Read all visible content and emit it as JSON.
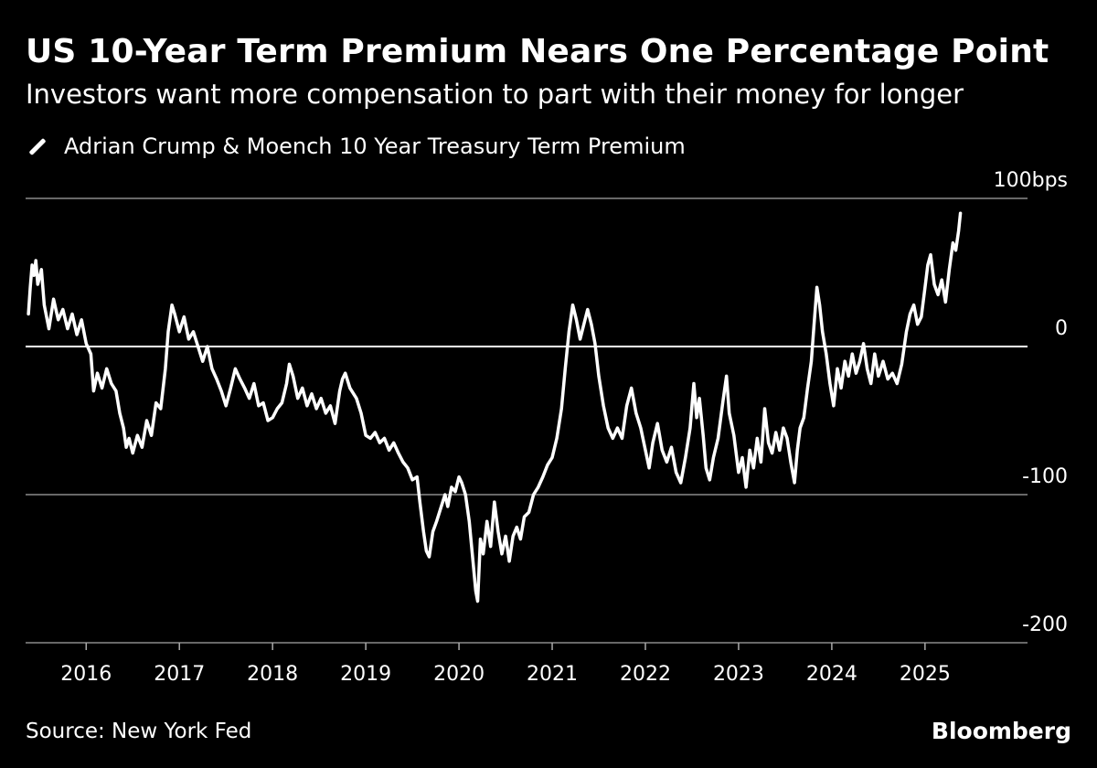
{
  "chart_data": {
    "type": "line",
    "title": "US 10-Year Term Premium Nears One Percentage Point",
    "subtitle": "Investors want more compensation to part with their money for longer",
    "legend": [
      "Adrian Crump & Moench 10 Year Treasury Term Premium"
    ],
    "y_unit": "bps",
    "ylim": [
      -200,
      100
    ],
    "y_ticks": [
      {
        "value": 100,
        "label": "100bps"
      },
      {
        "value": 0,
        "label": "0"
      },
      {
        "value": -100,
        "label": "-100"
      },
      {
        "value": -200,
        "label": "-200"
      }
    ],
    "xlim": [
      2015.35,
      2026.1
    ],
    "x_ticks": [
      {
        "value": 2016,
        "label": "2016"
      },
      {
        "value": 2017,
        "label": "2017"
      },
      {
        "value": 2018,
        "label": "2018"
      },
      {
        "value": 2019,
        "label": "2019"
      },
      {
        "value": 2020,
        "label": "2020"
      },
      {
        "value": 2021,
        "label": "2021"
      },
      {
        "value": 2022,
        "label": "2022"
      },
      {
        "value": 2023,
        "label": "2023"
      },
      {
        "value": 2024,
        "label": "2024"
      },
      {
        "value": 2025,
        "label": "2025"
      }
    ],
    "grid": true,
    "series": [
      {
        "name": "Adrian Crump & Moench 10 Year Treasury Term Premium",
        "color": "#ffffff",
        "points": [
          [
            2015.38,
            22
          ],
          [
            2015.4,
            40
          ],
          [
            2015.42,
            55
          ],
          [
            2015.44,
            48
          ],
          [
            2015.46,
            58
          ],
          [
            2015.48,
            42
          ],
          [
            2015.52,
            52
          ],
          [
            2015.55,
            28
          ],
          [
            2015.6,
            12
          ],
          [
            2015.65,
            32
          ],
          [
            2015.7,
            18
          ],
          [
            2015.75,
            25
          ],
          [
            2015.8,
            12
          ],
          [
            2015.85,
            22
          ],
          [
            2015.9,
            8
          ],
          [
            2015.95,
            18
          ],
          [
            2016.0,
            2
          ],
          [
            2016.05,
            -5
          ],
          [
            2016.08,
            -30
          ],
          [
            2016.12,
            -18
          ],
          [
            2016.17,
            -28
          ],
          [
            2016.22,
            -15
          ],
          [
            2016.27,
            -25
          ],
          [
            2016.32,
            -30
          ],
          [
            2016.36,
            -45
          ],
          [
            2016.4,
            -55
          ],
          [
            2016.43,
            -68
          ],
          [
            2016.46,
            -62
          ],
          [
            2016.5,
            -72
          ],
          [
            2016.55,
            -60
          ],
          [
            2016.6,
            -68
          ],
          [
            2016.65,
            -50
          ],
          [
            2016.7,
            -60
          ],
          [
            2016.75,
            -38
          ],
          [
            2016.8,
            -42
          ],
          [
            2016.85,
            -15
          ],
          [
            2016.88,
            10
          ],
          [
            2016.92,
            28
          ],
          [
            2016.95,
            22
          ],
          [
            2017.0,
            10
          ],
          [
            2017.05,
            20
          ],
          [
            2017.1,
            5
          ],
          [
            2017.15,
            10
          ],
          [
            2017.2,
            0
          ],
          [
            2017.25,
            -10
          ],
          [
            2017.3,
            0
          ],
          [
            2017.35,
            -15
          ],
          [
            2017.4,
            -22
          ],
          [
            2017.45,
            -30
          ],
          [
            2017.5,
            -40
          ],
          [
            2017.55,
            -28
          ],
          [
            2017.6,
            -15
          ],
          [
            2017.65,
            -22
          ],
          [
            2017.7,
            -28
          ],
          [
            2017.75,
            -35
          ],
          [
            2017.8,
            -25
          ],
          [
            2017.85,
            -40
          ],
          [
            2017.9,
            -38
          ],
          [
            2017.95,
            -50
          ],
          [
            2018.0,
            -48
          ],
          [
            2018.05,
            -42
          ],
          [
            2018.1,
            -38
          ],
          [
            2018.15,
            -25
          ],
          [
            2018.18,
            -12
          ],
          [
            2018.22,
            -20
          ],
          [
            2018.27,
            -35
          ],
          [
            2018.32,
            -28
          ],
          [
            2018.37,
            -40
          ],
          [
            2018.42,
            -32
          ],
          [
            2018.47,
            -42
          ],
          [
            2018.52,
            -35
          ],
          [
            2018.57,
            -45
          ],
          [
            2018.62,
            -40
          ],
          [
            2018.67,
            -52
          ],
          [
            2018.72,
            -30
          ],
          [
            2018.75,
            -22
          ],
          [
            2018.78,
            -18
          ],
          [
            2018.83,
            -28
          ],
          [
            2018.9,
            -35
          ],
          [
            2018.95,
            -45
          ],
          [
            2019.0,
            -60
          ],
          [
            2019.05,
            -62
          ],
          [
            2019.1,
            -58
          ],
          [
            2019.15,
            -65
          ],
          [
            2019.2,
            -62
          ],
          [
            2019.25,
            -70
          ],
          [
            2019.3,
            -65
          ],
          [
            2019.35,
            -72
          ],
          [
            2019.4,
            -78
          ],
          [
            2019.45,
            -82
          ],
          [
            2019.5,
            -90
          ],
          [
            2019.55,
            -88
          ],
          [
            2019.58,
            -105
          ],
          [
            2019.62,
            -125
          ],
          [
            2019.65,
            -138
          ],
          [
            2019.68,
            -142
          ],
          [
            2019.72,
            -125
          ],
          [
            2019.76,
            -118
          ],
          [
            2019.8,
            -110
          ],
          [
            2019.85,
            -100
          ],
          [
            2019.88,
            -108
          ],
          [
            2019.92,
            -95
          ],
          [
            2019.96,
            -98
          ],
          [
            2020.0,
            -88
          ],
          [
            2020.03,
            -92
          ],
          [
            2020.07,
            -100
          ],
          [
            2020.11,
            -118
          ],
          [
            2020.15,
            -145
          ],
          [
            2020.18,
            -165
          ],
          [
            2020.2,
            -172
          ],
          [
            2020.23,
            -130
          ],
          [
            2020.26,
            -140
          ],
          [
            2020.3,
            -118
          ],
          [
            2020.34,
            -135
          ],
          [
            2020.38,
            -105
          ],
          [
            2020.42,
            -125
          ],
          [
            2020.46,
            -140
          ],
          [
            2020.5,
            -128
          ],
          [
            2020.54,
            -145
          ],
          [
            2020.58,
            -128
          ],
          [
            2020.62,
            -122
          ],
          [
            2020.66,
            -130
          ],
          [
            2020.7,
            -115
          ],
          [
            2020.75,
            -112
          ],
          [
            2020.8,
            -100
          ],
          [
            2020.85,
            -95
          ],
          [
            2020.9,
            -88
          ],
          [
            2020.95,
            -80
          ],
          [
            2021.0,
            -75
          ],
          [
            2021.05,
            -62
          ],
          [
            2021.1,
            -42
          ],
          [
            2021.14,
            -15
          ],
          [
            2021.18,
            10
          ],
          [
            2021.22,
            28
          ],
          [
            2021.26,
            18
          ],
          [
            2021.3,
            5
          ],
          [
            2021.34,
            15
          ],
          [
            2021.38,
            25
          ],
          [
            2021.42,
            15
          ],
          [
            2021.46,
            2
          ],
          [
            2021.5,
            -20
          ],
          [
            2021.55,
            -40
          ],
          [
            2021.6,
            -55
          ],
          [
            2021.65,
            -62
          ],
          [
            2021.7,
            -55
          ],
          [
            2021.75,
            -62
          ],
          [
            2021.8,
            -40
          ],
          [
            2021.85,
            -28
          ],
          [
            2021.9,
            -45
          ],
          [
            2021.95,
            -55
          ],
          [
            2022.0,
            -70
          ],
          [
            2022.04,
            -82
          ],
          [
            2022.08,
            -65
          ],
          [
            2022.13,
            -52
          ],
          [
            2022.18,
            -70
          ],
          [
            2022.23,
            -78
          ],
          [
            2022.28,
            -68
          ],
          [
            2022.33,
            -85
          ],
          [
            2022.38,
            -92
          ],
          [
            2022.43,
            -75
          ],
          [
            2022.48,
            -55
          ],
          [
            2022.52,
            -25
          ],
          [
            2022.55,
            -48
          ],
          [
            2022.58,
            -35
          ],
          [
            2022.62,
            -60
          ],
          [
            2022.65,
            -82
          ],
          [
            2022.69,
            -90
          ],
          [
            2022.73,
            -75
          ],
          [
            2022.78,
            -62
          ],
          [
            2022.83,
            -38
          ],
          [
            2022.87,
            -20
          ],
          [
            2022.9,
            -45
          ],
          [
            2022.95,
            -60
          ],
          [
            2023.0,
            -85
          ],
          [
            2023.04,
            -75
          ],
          [
            2023.08,
            -95
          ],
          [
            2023.12,
            -70
          ],
          [
            2023.16,
            -82
          ],
          [
            2023.2,
            -62
          ],
          [
            2023.24,
            -78
          ],
          [
            2023.28,
            -42
          ],
          [
            2023.32,
            -65
          ],
          [
            2023.36,
            -72
          ],
          [
            2023.4,
            -58
          ],
          [
            2023.44,
            -70
          ],
          [
            2023.48,
            -55
          ],
          [
            2023.52,
            -62
          ],
          [
            2023.56,
            -78
          ],
          [
            2023.6,
            -92
          ],
          [
            2023.63,
            -70
          ],
          [
            2023.66,
            -55
          ],
          [
            2023.7,
            -48
          ],
          [
            2023.74,
            -28
          ],
          [
            2023.78,
            -10
          ],
          [
            2023.81,
            15
          ],
          [
            2023.84,
            40
          ],
          [
            2023.87,
            28
          ],
          [
            2023.9,
            10
          ],
          [
            2023.94,
            -5
          ],
          [
            2023.98,
            -25
          ],
          [
            2024.02,
            -40
          ],
          [
            2024.06,
            -15
          ],
          [
            2024.1,
            -28
          ],
          [
            2024.14,
            -10
          ],
          [
            2024.18,
            -20
          ],
          [
            2024.22,
            -5
          ],
          [
            2024.26,
            -18
          ],
          [
            2024.3,
            -10
          ],
          [
            2024.34,
            2
          ],
          [
            2024.38,
            -15
          ],
          [
            2024.42,
            -25
          ],
          [
            2024.46,
            -5
          ],
          [
            2024.5,
            -20
          ],
          [
            2024.55,
            -10
          ],
          [
            2024.6,
            -22
          ],
          [
            2024.65,
            -18
          ],
          [
            2024.7,
            -25
          ],
          [
            2024.75,
            -12
          ],
          [
            2024.8,
            10
          ],
          [
            2024.84,
            22
          ],
          [
            2024.88,
            28
          ],
          [
            2024.92,
            15
          ],
          [
            2024.96,
            20
          ],
          [
            2025.0,
            40
          ],
          [
            2025.03,
            55
          ],
          [
            2025.06,
            62
          ],
          [
            2025.1,
            42
          ],
          [
            2025.14,
            35
          ],
          [
            2025.18,
            45
          ],
          [
            2025.22,
            30
          ],
          [
            2025.26,
            52
          ],
          [
            2025.3,
            70
          ],
          [
            2025.33,
            65
          ],
          [
            2025.36,
            78
          ],
          [
            2025.38,
            90
          ]
        ]
      }
    ]
  },
  "footer": {
    "source": "Source: New York Fed",
    "brand": "Bloomberg"
  }
}
